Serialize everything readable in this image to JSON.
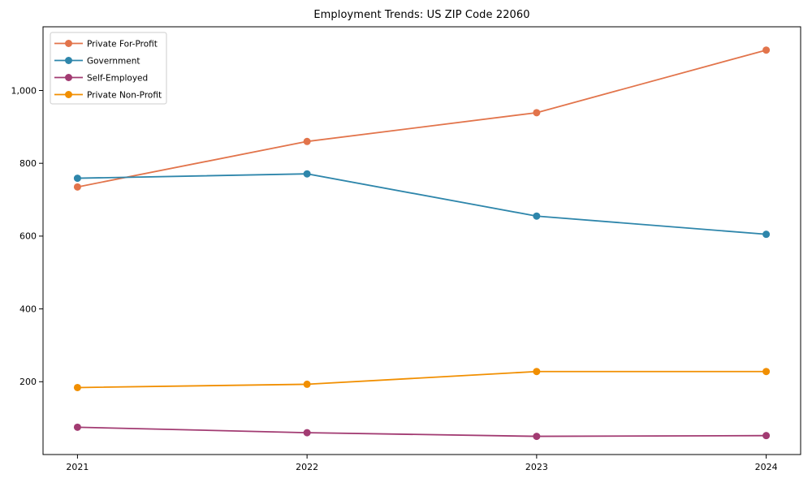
{
  "figure": {
    "background": "#ffffff",
    "frame_color": "#000000",
    "tick_color": "#000000",
    "legend_border_color": "#cccccc",
    "legend_background": "#ffffff"
  },
  "chart_data": {
    "type": "line",
    "title": "Employment Trends: US ZIP Code 22060",
    "x": [
      2021,
      2022,
      2023,
      2024
    ],
    "xtick_labels": [
      "2021",
      "2022",
      "2023",
      "2024"
    ],
    "yticks": [
      200,
      400,
      600,
      800,
      1000
    ],
    "ytick_labels": [
      "200",
      "400",
      "600",
      "800",
      "1,000"
    ],
    "xlim": [
      2020.85,
      2024.15
    ],
    "ylim": [
      0,
      1175
    ],
    "grid": false,
    "legend_position": "upper-left",
    "series": [
      {
        "name": "Private For-Profit",
        "color": "#E2744B",
        "values": [
          735,
          860,
          939,
          1111
        ]
      },
      {
        "name": "Government",
        "color": "#2E86AB",
        "values": [
          759,
          771,
          655,
          605
        ]
      },
      {
        "name": "Self-Employed",
        "color": "#A23B72",
        "values": [
          75,
          60,
          50,
          52
        ]
      },
      {
        "name": "Private Non-Profit",
        "color": "#F18F01",
        "values": [
          184,
          193,
          228,
          228
        ]
      }
    ]
  }
}
